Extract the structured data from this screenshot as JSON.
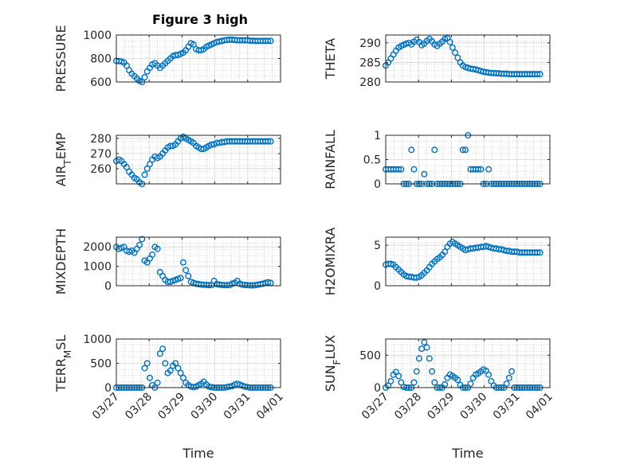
{
  "figure": {
    "title": "Figure 3 high",
    "marker_color": "#0072BD",
    "grid_color": "#b0b0b0",
    "axis_color": "#262626"
  },
  "chart_data": [
    {
      "type": "scatter",
      "ylabel": "PRESSURE",
      "ylim": [
        600,
        1000
      ],
      "yticks": [
        600,
        800,
        1000
      ],
      "xlim": [
        "03/27",
        "04/01"
      ],
      "xticks": [
        "03/27",
        "03/28",
        "03/29",
        "03/30",
        "03/31",
        "04/01"
      ],
      "x": [
        0.0,
        0.1,
        0.2,
        0.3,
        0.4,
        0.5,
        0.6,
        0.7,
        0.8,
        0.9,
        1.0,
        1.1,
        1.2,
        1.3,
        1.4,
        1.5,
        1.6,
        1.7,
        1.8,
        1.9,
        2.0,
        2.1,
        2.2,
        2.3,
        2.4,
        2.5,
        2.6,
        2.7,
        2.8,
        2.9,
        3.0,
        3.1,
        3.2,
        3.3,
        3.4,
        3.5,
        3.6,
        3.7,
        3.8,
        3.9,
        4.0,
        4.1,
        4.2,
        4.3,
        4.4,
        4.5,
        4.6,
        4.7,
        4.8,
        4.9,
        5.0,
        5.1,
        5.2,
        5.3,
        5.4,
        5.5,
        5.6,
        5.7,
        5.8,
        5.9,
        6.0
      ],
      "y": [
        780,
        778,
        775,
        765,
        740,
        700,
        670,
        650,
        630,
        610,
        600,
        640,
        690,
        720,
        750,
        760,
        740,
        720,
        740,
        760,
        780,
        800,
        820,
        830,
        830,
        840,
        850,
        870,
        900,
        930,
        920,
        880,
        870,
        870,
        880,
        900,
        910,
        920,
        930,
        940,
        945,
        950,
        955,
        958,
        960,
        960,
        958,
        955,
        955,
        955,
        955,
        955,
        952,
        952,
        950,
        950,
        950,
        950,
        950,
        950,
        950
      ]
    },
    {
      "type": "scatter",
      "ylabel": "THETA",
      "ylim": [
        280,
        292
      ],
      "yticks": [
        280,
        285,
        290
      ],
      "xlim": [
        "03/27",
        "04/01"
      ],
      "xticks": [
        "03/27",
        "03/28",
        "03/29",
        "03/30",
        "03/31",
        "04/01"
      ],
      "x": [
        0.0,
        0.1,
        0.2,
        0.3,
        0.4,
        0.5,
        0.6,
        0.7,
        0.8,
        0.9,
        1.0,
        1.1,
        1.2,
        1.3,
        1.4,
        1.5,
        1.6,
        1.7,
        1.8,
        1.9,
        2.0,
        2.1,
        2.2,
        2.3,
        2.4,
        2.5,
        2.6,
        2.7,
        2.8,
        2.9,
        3.0,
        3.1,
        3.2,
        3.3,
        3.4,
        3.5,
        3.6,
        3.7,
        3.8,
        3.9,
        4.0,
        4.1,
        4.2,
        4.3,
        4.4,
        4.5,
        4.6,
        4.7,
        4.8,
        4.9,
        5.0,
        5.1,
        5.2,
        5.3,
        5.4,
        5.5,
        5.6,
        5.7,
        5.8,
        5.9,
        6.0
      ],
      "y": [
        284.2,
        285,
        286,
        287,
        288,
        288.8,
        289.2,
        289.5,
        289.8,
        290,
        289.6,
        290.3,
        290.8,
        290.2,
        289.4,
        289.8,
        290.5,
        291,
        290.4,
        289.6,
        289.2,
        289.8,
        290.3,
        291,
        291.2,
        290.2,
        288.8,
        287.5,
        286.2,
        285,
        284.2,
        283.8,
        283.6,
        283.4,
        283.3,
        283.2,
        283,
        282.8,
        282.6,
        282.5,
        282.4,
        282.3,
        282.3,
        282.2,
        282.2,
        282.1,
        282.1,
        282.1,
        282,
        282,
        282,
        282,
        282,
        282,
        282,
        282,
        282,
        282,
        282,
        282,
        282
      ]
    },
    {
      "type": "scatter",
      "ylabel": "AIR",
      "ylabel_sub": "T",
      "ylabel_rest": "EMP",
      "ylim": [
        250,
        282
      ],
      "yticks": [
        260,
        270,
        280
      ],
      "xlim": [
        "03/27",
        "04/01"
      ],
      "xticks": [
        "03/27",
        "03/28",
        "03/29",
        "03/30",
        "03/31",
        "04/01"
      ],
      "x": [
        0.0,
        0.1,
        0.2,
        0.3,
        0.4,
        0.5,
        0.6,
        0.7,
        0.8,
        0.9,
        1.0,
        1.1,
        1.2,
        1.3,
        1.4,
        1.5,
        1.6,
        1.7,
        1.8,
        1.9,
        2.0,
        2.1,
        2.2,
        2.3,
        2.4,
        2.5,
        2.6,
        2.7,
        2.8,
        2.9,
        3.0,
        3.1,
        3.2,
        3.3,
        3.4,
        3.5,
        3.6,
        3.7,
        3.8,
        3.9,
        4.0,
        4.1,
        4.2,
        4.3,
        4.4,
        4.5,
        4.6,
        4.7,
        4.8,
        4.9,
        5.0,
        5.1,
        5.2,
        5.3,
        5.4,
        5.5,
        5.6,
        5.7,
        5.8,
        5.9,
        6.0
      ],
      "y": [
        265,
        266,
        265,
        263,
        261,
        258,
        256,
        254,
        253,
        251,
        250,
        256,
        260,
        263,
        266,
        268,
        267,
        268,
        270,
        272,
        274,
        275,
        275,
        276,
        278,
        280,
        281,
        280,
        279,
        278,
        277,
        275,
        274,
        273,
        273,
        274,
        275,
        276,
        276,
        277,
        277,
        277.5,
        277.5,
        278,
        278,
        278,
        278,
        278,
        278,
        278,
        278,
        278,
        278,
        278,
        278,
        278,
        278,
        278,
        278,
        278,
        278
      ]
    },
    {
      "type": "scatter",
      "ylabel": "RAINFALL",
      "ylim": [
        0,
        1
      ],
      "yticks": [
        0,
        0.5,
        1
      ],
      "xlim": [
        "03/27",
        "04/01"
      ],
      "xticks": [
        "03/27",
        "03/28",
        "03/29",
        "03/30",
        "03/31",
        "04/01"
      ],
      "x": [
        0.0,
        0.1,
        0.2,
        0.3,
        0.4,
        0.5,
        0.6,
        0.7,
        0.8,
        0.9,
        1.0,
        1.1,
        1.2,
        1.3,
        1.4,
        1.5,
        1.6,
        1.7,
        1.8,
        1.9,
        2.0,
        2.1,
        2.2,
        2.3,
        2.4,
        2.5,
        2.6,
        2.7,
        2.8,
        2.9,
        3.0,
        3.1,
        3.2,
        3.3,
        3.4,
        3.5,
        3.6,
        3.7,
        3.8,
        3.9,
        4.0,
        4.1,
        4.2,
        4.3,
        4.4,
        4.5,
        4.6,
        4.7,
        4.8,
        4.9,
        5.0,
        5.1,
        5.2,
        5.3,
        5.4,
        5.5,
        5.6,
        5.7,
        5.8,
        5.9,
        6.0
      ],
      "y": [
        0.3,
        0.3,
        0.3,
        0.3,
        0.3,
        0.3,
        0.3,
        0,
        0,
        0,
        0.7,
        0.3,
        0,
        0,
        0,
        0.2,
        0,
        0,
        0,
        0.7,
        0,
        0,
        0,
        0,
        0,
        0,
        0,
        0,
        0,
        0,
        0.7,
        0.7,
        1.0,
        0.3,
        0.3,
        0.3,
        0.3,
        0.3,
        0,
        0,
        0.3,
        0,
        0,
        0,
        0,
        0,
        0,
        0,
        0,
        0,
        0,
        0,
        0,
        0,
        0,
        0,
        0,
        0,
        0,
        0,
        0
      ]
    },
    {
      "type": "scatter",
      "ylabel": "MIXDEPTH",
      "ylim": [
        0,
        2500
      ],
      "yticks": [
        0,
        1000,
        2000
      ],
      "xlim": [
        "03/27",
        "04/01"
      ],
      "xticks": [
        "03/27",
        "03/28",
        "03/29",
        "03/30",
        "03/31",
        "04/01"
      ],
      "x": [
        0.0,
        0.1,
        0.2,
        0.3,
        0.4,
        0.5,
        0.6,
        0.7,
        0.8,
        0.9,
        1.0,
        1.1,
        1.2,
        1.3,
        1.4,
        1.5,
        1.6,
        1.7,
        1.8,
        1.9,
        2.0,
        2.1,
        2.2,
        2.3,
        2.4,
        2.5,
        2.6,
        2.7,
        2.8,
        2.9,
        3.0,
        3.1,
        3.2,
        3.3,
        3.4,
        3.5,
        3.6,
        3.7,
        3.8,
        3.9,
        4.0,
        4.1,
        4.2,
        4.3,
        4.4,
        4.5,
        4.6,
        4.7,
        4.8,
        4.9,
        5.0,
        5.1,
        5.2,
        5.3,
        5.4,
        5.5,
        5.6,
        5.7,
        5.8,
        5.9,
        6.0
      ],
      "y": [
        2000,
        1900,
        1950,
        2000,
        1800,
        1750,
        1800,
        1700,
        1900,
        2100,
        2400,
        1300,
        1200,
        1400,
        1600,
        2000,
        1900,
        700,
        500,
        300,
        200,
        200,
        250,
        300,
        350,
        400,
        1200,
        800,
        500,
        200,
        150,
        100,
        80,
        60,
        50,
        40,
        30,
        30,
        250,
        80,
        60,
        40,
        30,
        30,
        30,
        100,
        150,
        250,
        100,
        50,
        40,
        30,
        20,
        20,
        30,
        50,
        80,
        100,
        150,
        180,
        150
      ]
    },
    {
      "type": "scatter",
      "ylabel": "H2OMIXRA",
      "ylim": [
        0,
        6
      ],
      "yticks": [
        0,
        5
      ],
      "xlim": [
        "03/27",
        "04/01"
      ],
      "xticks": [
        "03/27",
        "03/28",
        "03/29",
        "03/30",
        "03/31",
        "04/01"
      ],
      "x": [
        0.0,
        0.1,
        0.2,
        0.3,
        0.4,
        0.5,
        0.6,
        0.7,
        0.8,
        0.9,
        1.0,
        1.1,
        1.2,
        1.3,
        1.4,
        1.5,
        1.6,
        1.7,
        1.8,
        1.9,
        2.0,
        2.1,
        2.2,
        2.3,
        2.4,
        2.5,
        2.6,
        2.7,
        2.8,
        2.9,
        3.0,
        3.1,
        3.2,
        3.3,
        3.4,
        3.5,
        3.6,
        3.7,
        3.8,
        3.9,
        4.0,
        4.1,
        4.2,
        4.3,
        4.4,
        4.5,
        4.6,
        4.7,
        4.8,
        4.9,
        5.0,
        5.1,
        5.2,
        5.3,
        5.4,
        5.5,
        5.6,
        5.7,
        5.8,
        5.9,
        6.0
      ],
      "y": [
        2.6,
        2.7,
        2.7,
        2.6,
        2.3,
        2,
        1.7,
        1.4,
        1.2,
        1.1,
        1.1,
        1,
        1,
        1.1,
        1.3,
        1.6,
        1.9,
        2.3,
        2.7,
        3,
        3.3,
        3.5,
        3.8,
        4.2,
        4.8,
        5.2,
        5.4,
        5.2,
        5,
        4.8,
        4.6,
        4.4,
        4.5,
        4.6,
        4.6,
        4.7,
        4.7,
        4.8,
        4.8,
        4.9,
        4.8,
        4.7,
        4.6,
        4.6,
        4.5,
        4.5,
        4.4,
        4.3,
        4.3,
        4.2,
        4.2,
        4.2,
        4.1,
        4.1,
        4.1,
        4.1,
        4.1,
        4.1,
        4.1,
        4.1,
        4.1
      ]
    },
    {
      "type": "scatter",
      "ylabel": "TERR",
      "ylabel_sub": "M",
      "ylabel_rest": "SL",
      "ylim": [
        0,
        1000
      ],
      "yticks": [
        0,
        500,
        1000
      ],
      "xlim": [
        "03/27",
        "04/01"
      ],
      "xticks": [
        "03/27",
        "03/28",
        "03/29",
        "03/30",
        "03/31",
        "04/01"
      ],
      "xlabel": "Time",
      "x": [
        0.0,
        0.1,
        0.2,
        0.3,
        0.4,
        0.5,
        0.6,
        0.7,
        0.8,
        0.9,
        1.0,
        1.1,
        1.2,
        1.3,
        1.4,
        1.5,
        1.6,
        1.7,
        1.8,
        1.9,
        2.0,
        2.1,
        2.2,
        2.3,
        2.4,
        2.5,
        2.6,
        2.7,
        2.8,
        2.9,
        3.0,
        3.1,
        3.2,
        3.3,
        3.4,
        3.5,
        3.6,
        3.7,
        3.8,
        3.9,
        4.0,
        4.1,
        4.2,
        4.3,
        4.4,
        4.5,
        4.6,
        4.7,
        4.8,
        4.9,
        5.0,
        5.1,
        5.2,
        5.3,
        5.4,
        5.5,
        5.6,
        5.7,
        5.8,
        5.9,
        6.0
      ],
      "y": [
        0,
        0,
        0,
        0,
        0,
        0,
        0,
        0,
        0,
        0,
        0,
        400,
        500,
        200,
        50,
        0,
        100,
        700,
        800,
        500,
        300,
        350,
        450,
        500,
        400,
        300,
        200,
        100,
        50,
        20,
        10,
        20,
        50,
        80,
        120,
        60,
        20,
        10,
        0,
        0,
        0,
        0,
        0,
        10,
        20,
        30,
        60,
        80,
        60,
        40,
        20,
        10,
        0,
        0,
        0,
        0,
        0,
        0,
        0,
        0,
        0
      ]
    },
    {
      "type": "scatter",
      "ylabel": "SUN",
      "ylabel_sub": "F",
      "ylabel_rest": "LUX",
      "ylim": [
        0,
        750
      ],
      "yticks": [
        0,
        500
      ],
      "xlim": [
        "03/27",
        "04/01"
      ],
      "xticks": [
        "03/27",
        "03/28",
        "03/29",
        "03/30",
        "03/31",
        "04/01"
      ],
      "xlabel": "Time",
      "x": [
        0.0,
        0.1,
        0.2,
        0.3,
        0.4,
        0.5,
        0.6,
        0.7,
        0.8,
        0.9,
        1.0,
        1.1,
        1.2,
        1.3,
        1.4,
        1.5,
        1.6,
        1.7,
        1.8,
        1.9,
        2.0,
        2.1,
        2.2,
        2.3,
        2.4,
        2.5,
        2.6,
        2.7,
        2.8,
        2.9,
        3.0,
        3.1,
        3.2,
        3.3,
        3.4,
        3.5,
        3.6,
        3.7,
        3.8,
        3.9,
        4.0,
        4.1,
        4.2,
        4.3,
        4.4,
        4.5,
        4.6,
        4.7,
        4.8,
        4.9,
        5.0,
        5.1,
        5.2,
        5.3,
        5.4,
        5.5,
        5.6,
        5.7,
        5.8,
        5.9,
        6.0
      ],
      "y": [
        0,
        30,
        100,
        200,
        240,
        180,
        80,
        10,
        0,
        0,
        0,
        80,
        250,
        450,
        600,
        700,
        620,
        450,
        250,
        80,
        0,
        0,
        0,
        50,
        150,
        200,
        180,
        150,
        120,
        40,
        0,
        0,
        0,
        60,
        150,
        200,
        220,
        250,
        280,
        260,
        200,
        100,
        30,
        0,
        0,
        0,
        0,
        60,
        150,
        250,
        0,
        0,
        0,
        0,
        0,
        0,
        0,
        0,
        0,
        0,
        0
      ]
    }
  ]
}
